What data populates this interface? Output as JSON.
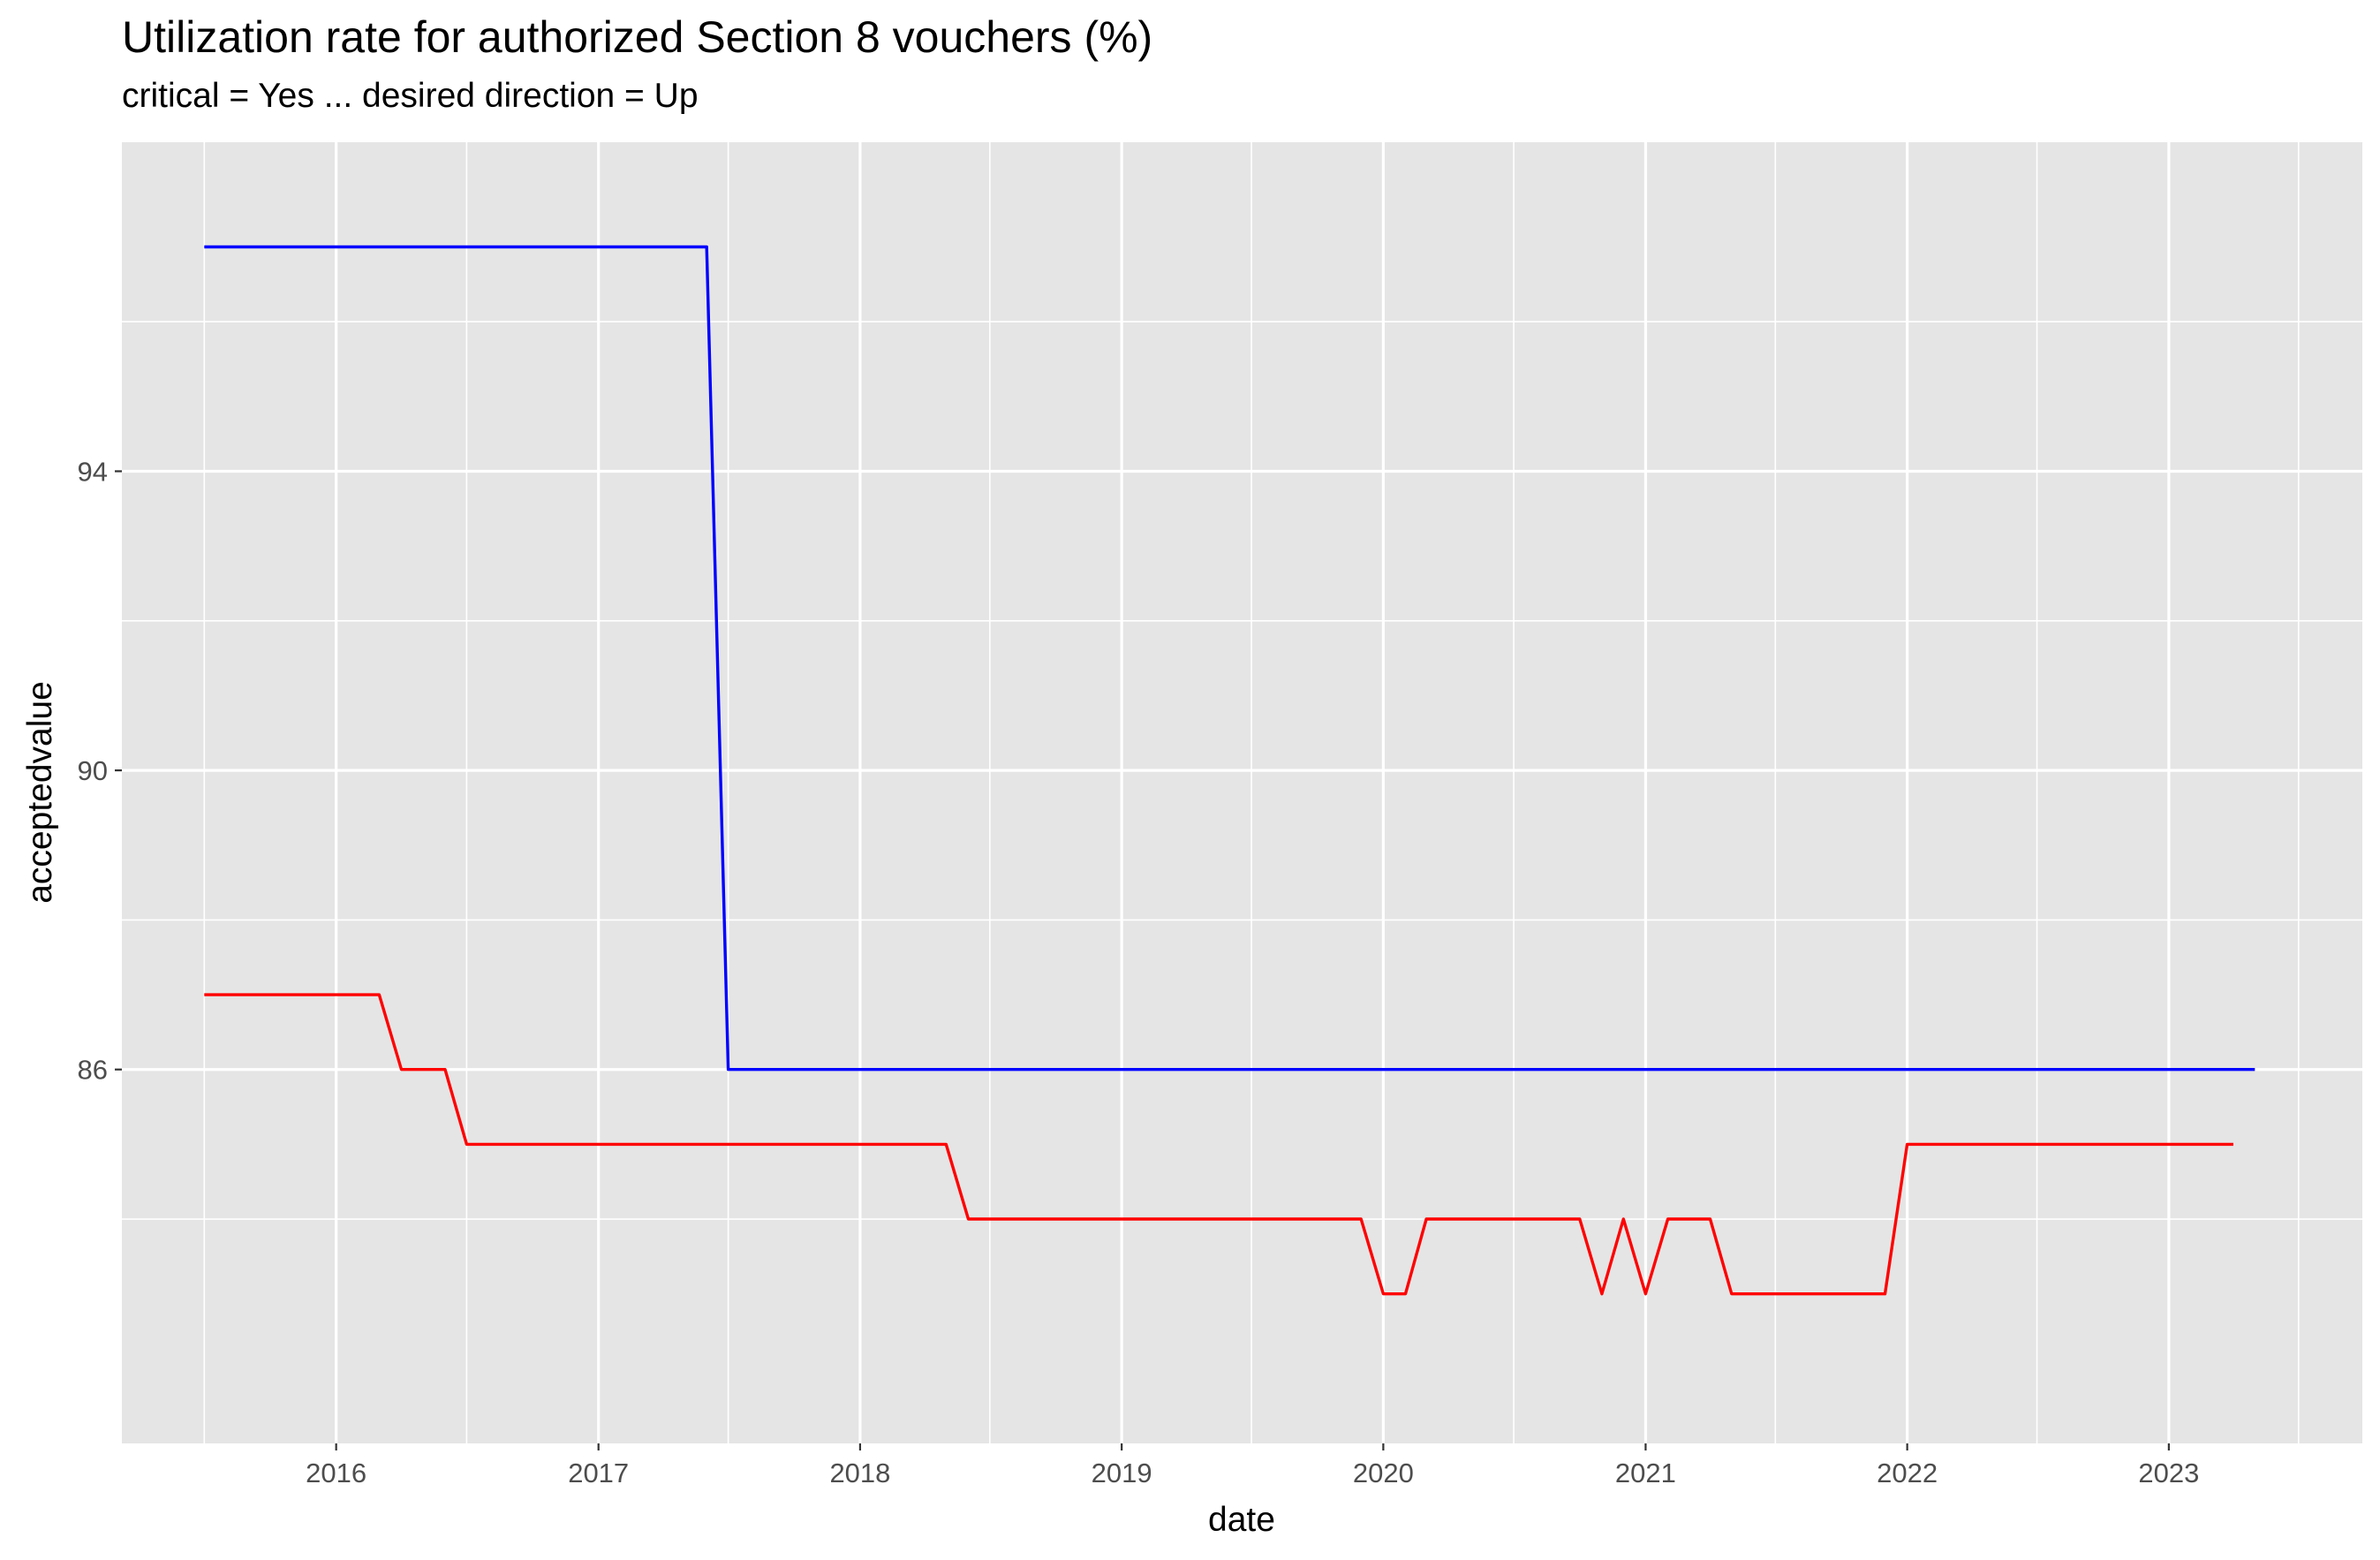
{
  "chart_data": {
    "type": "line",
    "title": "Utilization rate for authorized Section 8 vouchers (%)",
    "subtitle": "critical = Yes ... desired direction = Up",
    "xlabel": "date",
    "ylabel": "acceptedvalue",
    "x_ticks": [
      "2016",
      "2017",
      "2018",
      "2019",
      "2020",
      "2021",
      "2022",
      "2023"
    ],
    "y_ticks": [
      "86",
      "90",
      "94"
    ],
    "xlim": [
      "2015-03-08",
      "2023-09-28"
    ],
    "ylim": [
      81.0,
      98.4
    ],
    "grid": true,
    "legend": "none",
    "series": [
      {
        "color": "#0000ff",
        "points": [
          [
            "2015-07-01",
            97
          ],
          [
            "2017-06-01",
            97
          ],
          [
            "2017-07-01",
            86
          ],
          [
            "2023-05-01",
            86
          ]
        ]
      },
      {
        "color": "#ff0000",
        "points": [
          [
            "2015-07-01",
            87
          ],
          [
            "2016-03-01",
            87
          ],
          [
            "2016-04-01",
            86
          ],
          [
            "2016-06-01",
            86
          ],
          [
            "2016-07-01",
            85
          ],
          [
            "2018-05-01",
            85
          ],
          [
            "2018-06-01",
            84
          ],
          [
            "2019-12-01",
            84
          ],
          [
            "2020-01-01",
            83
          ],
          [
            "2020-02-01",
            83
          ],
          [
            "2020-03-01",
            84
          ],
          [
            "2020-10-01",
            84
          ],
          [
            "2020-11-01",
            83
          ],
          [
            "2020-12-01",
            84
          ],
          [
            "2021-01-01",
            83
          ],
          [
            "2021-02-01",
            84
          ],
          [
            "2021-04-01",
            84
          ],
          [
            "2021-05-01",
            83
          ],
          [
            "2021-12-01",
            83
          ],
          [
            "2022-01-01",
            85
          ],
          [
            "2023-04-01",
            85
          ]
        ]
      }
    ]
  }
}
